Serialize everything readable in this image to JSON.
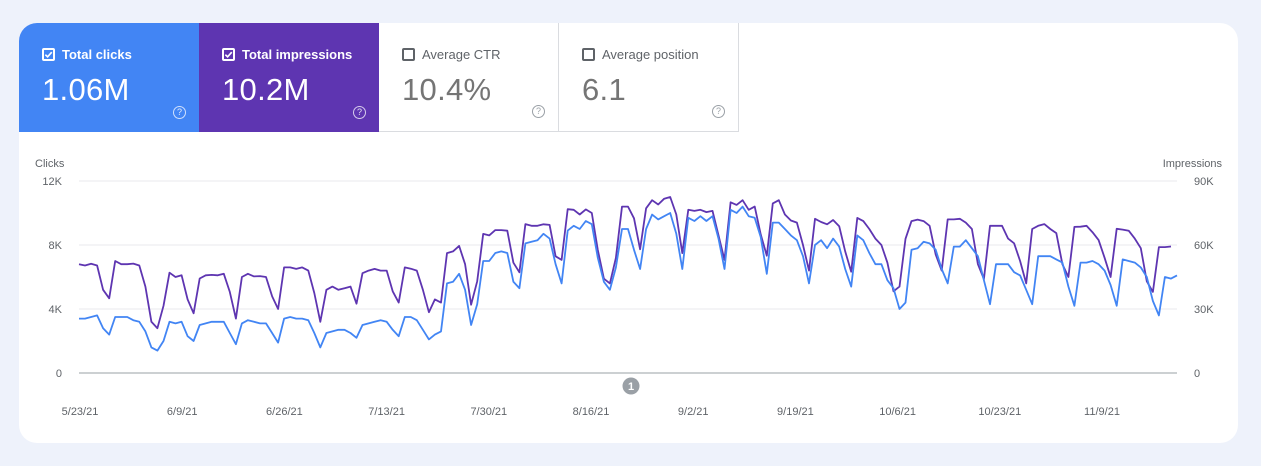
{
  "metrics": [
    {
      "label": "Total clicks",
      "value": "1.06M",
      "checked": true
    },
    {
      "label": "Total impressions",
      "value": "10.2M",
      "checked": true
    },
    {
      "label": "Average CTR",
      "value": "10.4%",
      "checked": false
    },
    {
      "label": "Average position",
      "value": "6.1",
      "checked": false
    }
  ],
  "help_glyph": "?",
  "colors": {
    "clicks": "#4285f4",
    "impressions": "#5e35b1",
    "grid": "#e8eaed",
    "axis": "#9aa0a6",
    "text": "#5f6368"
  },
  "chart_data": {
    "type": "line",
    "left_axis": {
      "title": "Clicks",
      "ticks": [
        "0",
        "4K",
        "8K",
        "12K"
      ],
      "range": [
        0,
        12000
      ]
    },
    "right_axis": {
      "title": "Impressions",
      "ticks": [
        "0",
        "30K",
        "60K",
        "90K"
      ],
      "range": [
        0,
        90000
      ]
    },
    "x_ticks": [
      "5/23/21",
      "6/9/21",
      "6/26/21",
      "7/13/21",
      "7/30/21",
      "8/16/21",
      "9/2/21",
      "9/19/21",
      "10/6/21",
      "10/23/21",
      "11/9/21"
    ],
    "annotation": "1",
    "grid": true,
    "series": [
      {
        "name": "Clicks",
        "axis": "left",
        "values": [
          3400,
          3400,
          3500,
          3600,
          2800,
          2400,
          3500,
          3500,
          3500,
          3300,
          3200,
          2600,
          1600,
          1400,
          2000,
          3200,
          3100,
          3200,
          2300,
          2000,
          3000,
          3100,
          3200,
          3200,
          3200,
          2500,
          1800,
          3100,
          3300,
          3200,
          3100,
          3100,
          2500,
          1900,
          3400,
          3500,
          3400,
          3400,
          3300,
          2500,
          1600,
          2500,
          2600,
          2700,
          2700,
          2500,
          2200,
          3000,
          3100,
          3200,
          3300,
          3200,
          2700,
          2300,
          3500,
          3500,
          3300,
          2700,
          2100,
          2400,
          2600,
          5600,
          5700,
          6200,
          5200,
          3000,
          4300,
          7000,
          7000,
          7500,
          7600,
          7500,
          5700,
          5300,
          8100,
          8200,
          8300,
          8700,
          8400,
          6800,
          5600,
          8900,
          9200,
          9000,
          9500,
          9300,
          7200,
          5700,
          5200,
          6600,
          9000,
          9000,
          7700,
          6500,
          9000,
          9900,
          9600,
          9800,
          10000,
          8700,
          6500,
          9700,
          9500,
          9800,
          9500,
          9800,
          8400,
          6500,
          10200,
          10000,
          10400,
          9800,
          9700,
          8500,
          6200,
          9400,
          9400,
          9000,
          8600,
          8300,
          7300,
          5600,
          8000,
          8300,
          7800,
          8400,
          7900,
          6500,
          5400,
          8600,
          8300,
          7500,
          6800,
          6800,
          5800,
          5300,
          4000,
          4400,
          7700,
          7800,
          8200,
          8100,
          7700,
          6500,
          5600,
          7900,
          7900,
          8300,
          7800,
          7300,
          5800,
          4300,
          6800,
          6800,
          6800,
          6300,
          6100,
          5200,
          4300,
          7300,
          7300,
          7300,
          7100,
          6900,
          5400,
          4200,
          6900,
          6900,
          7000,
          6800,
          6400,
          5500,
          4200,
          7100,
          7000,
          6900,
          6600,
          6000,
          4500,
          3600,
          6000,
          5900,
          6100
        ]
      },
      {
        "name": "Impressions",
        "axis": "right",
        "values": [
          51000,
          50400,
          51200,
          50400,
          39000,
          35000,
          52500,
          51000,
          51000,
          51300,
          50400,
          40500,
          24000,
          21000,
          31500,
          47000,
          45000,
          45800,
          34500,
          28000,
          44300,
          45800,
          46000,
          45800,
          46500,
          38000,
          25500,
          45000,
          46500,
          45300,
          45400,
          45000,
          36000,
          30000,
          49500,
          49500,
          48800,
          49500,
          48000,
          37500,
          24000,
          39000,
          40500,
          39000,
          39700,
          40500,
          32500,
          46800,
          48000,
          48800,
          48000,
          48000,
          38300,
          33000,
          49500,
          48900,
          48000,
          39000,
          28500,
          34500,
          33000,
          56200,
          57000,
          59600,
          51000,
          32000,
          43000,
          65200,
          64500,
          67000,
          67000,
          66700,
          51700,
          47200,
          69800,
          69000,
          69000,
          69700,
          69400,
          54700,
          53000,
          76800,
          76500,
          74300,
          76700,
          75000,
          57700,
          44200,
          42000,
          54000,
          78000,
          78000,
          72500,
          58000,
          77200,
          81000,
          79000,
          81700,
          82500,
          74300,
          56200,
          76500,
          76000,
          76500,
          75400,
          76000,
          64500,
          53000,
          80000,
          78800,
          81000,
          76500,
          78000,
          65000,
          55000,
          79500,
          81000,
          74300,
          71500,
          70500,
          60000,
          48000,
          72300,
          70800,
          69700,
          71700,
          68800,
          57000,
          47500,
          72700,
          71200,
          67500,
          63000,
          60000,
          51700,
          38300,
          40500,
          62900,
          71200,
          71900,
          71200,
          69000,
          55500,
          48000,
          72000,
          72000,
          72300,
          70500,
          67500,
          51000,
          44000,
          69000,
          69000,
          69000,
          63000,
          60800,
          52500,
          42000,
          67500,
          69000,
          69800,
          67500,
          65600,
          51000,
          45000,
          68500,
          68600,
          69000,
          66000,
          62300,
          54000,
          45000,
          67600,
          67200,
          66700,
          63000,
          58500,
          43000,
          38000,
          59000,
          59000,
          59300
        ]
      }
    ]
  }
}
